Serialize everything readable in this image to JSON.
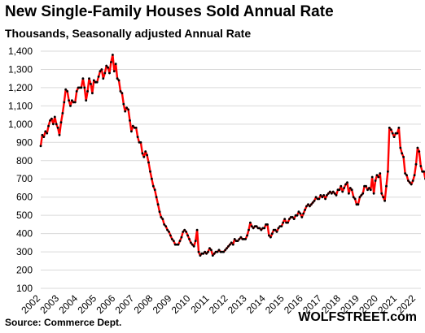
{
  "chart_data": {
    "type": "line",
    "title": "New Single-Family Houses Sold Annual Rate",
    "subtitle": "Thousands, Seasonally adjusted Annual Rate",
    "source": "Source: Commerce Dept.",
    "brand": "WOLFSTREET.com",
    "ylim": [
      100,
      1400
    ],
    "y_ticks": [
      "1,400",
      "1,300",
      "1,200",
      "1,100",
      "1,000",
      "900",
      "800",
      "700",
      "600",
      "500",
      "400",
      "300",
      "200",
      "100"
    ],
    "y_tick_values": [
      1400,
      1300,
      1200,
      1100,
      1000,
      900,
      800,
      700,
      600,
      500,
      400,
      300,
      200,
      100
    ],
    "x_ticks": [
      "2002",
      "2003",
      "2004",
      "2005",
      "2006",
      "2007",
      "2008",
      "2009",
      "2010",
      "2011",
      "2012",
      "2013",
      "2014",
      "2015",
      "2016",
      "2017",
      "2018",
      "2019",
      "2020",
      "2021",
      "2022"
    ],
    "grid": "horizontal",
    "series_color": "#ff0000",
    "marker_color": "#000000",
    "series": [
      {
        "x_start": "2002-01",
        "frequency": "monthly",
        "values": [
          880,
          940,
          930,
          960,
          950,
          990,
          1020,
          1030,
          1000,
          1040,
          1000,
          980,
          940,
          1010,
          1060,
          1120,
          1190,
          1180,
          1130,
          1100,
          1130,
          1120,
          1120,
          1180,
          1200,
          1200,
          1200,
          1250,
          1200,
          1130,
          1180,
          1250,
          1220,
          1170,
          1240,
          1230,
          1230,
          1260,
          1290,
          1300,
          1250,
          1280,
          1320,
          1310,
          1280,
          1340,
          1380,
          1290,
          1330,
          1250,
          1240,
          1180,
          1170,
          1110,
          1070,
          1090,
          1080,
          1020,
          960,
          990,
          980,
          980,
          930,
          900,
          900,
          840,
          820,
          850,
          830,
          790,
          740,
          700,
          660,
          640,
          600,
          560,
          520,
          490,
          480,
          450,
          440,
          420,
          410,
          390,
          370,
          360,
          340,
          340,
          340,
          360,
          380,
          410,
          420,
          410,
          390,
          370,
          350,
          340,
          330,
          360,
          420,
          300,
          280,
          290,
          290,
          300,
          290,
          300,
          320,
          310,
          280,
          290,
          300,
          300,
          310,
          300,
          300,
          300,
          310,
          320,
          330,
          340,
          350,
          340,
          370,
          360,
          360,
          370,
          380,
          370,
          370,
          370,
          390,
          420,
          460,
          440,
          430,
          440,
          440,
          430,
          430,
          420,
          430,
          430,
          450,
          450,
          390,
          380,
          400,
          420,
          420,
          410,
          430,
          440,
          440,
          460,
          480,
          460,
          460,
          480,
          490,
          490,
          480,
          500,
          500,
          520,
          510,
          490,
          510,
          530,
          550,
          560,
          550,
          560,
          570,
          580,
          600,
          590,
          590,
          610,
          600,
          610,
          590,
          610,
          620,
          630,
          620,
          630,
          620,
          610,
          640,
          640,
          660,
          630,
          650,
          670,
          680,
          620,
          650,
          640,
          600,
          590,
          560,
          560,
          600,
          610,
          620,
          660,
          660,
          640,
          650,
          640,
          710,
          620,
          690,
          720,
          710,
          730,
          620,
          600,
          580,
          660,
          740,
          980,
          970,
          950,
          930,
          950,
          950,
          980,
          870,
          840,
          820,
          730,
          720,
          690,
          680,
          670,
          690,
          720,
          780,
          870,
          850,
          770,
          740,
          740,
          700,
          690,
          700,
          700,
          690,
          700
        ]
      }
    ]
  }
}
